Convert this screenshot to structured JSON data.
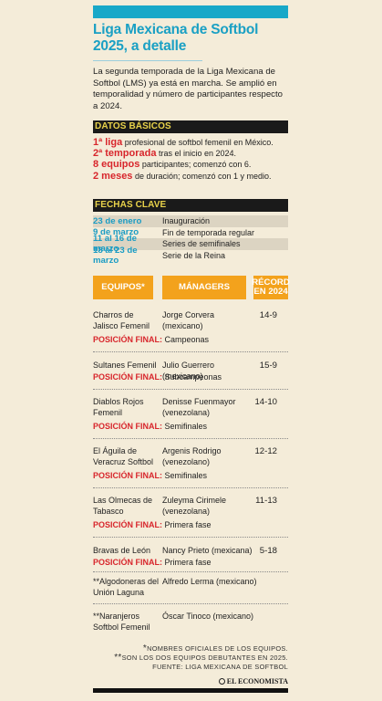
{
  "title": [
    "Liga Mexicana de Softbol",
    "2025, a detalle"
  ],
  "intro": "La segunda temporada de la Liga Mexicana de Softbol (LMS) ya está en marcha. Se amplió en temporalidad y número de participantes respecto a 2024.",
  "basics": {
    "heading": "DATOS BÁSICOS",
    "items": [
      {
        "big": "1ª liga",
        "text": " profesional de softbol femenil en México."
      },
      {
        "big": "2ª temporada",
        "text": " tras el inicio en 2024."
      },
      {
        "big": "8 equipos",
        "text": " participantes; comenzó con 6."
      },
      {
        "big": "2 meses",
        "text": " de duración; comenzó con 1 y medio."
      }
    ]
  },
  "dates": {
    "heading": "FECHAS CLAVE",
    "items": [
      {
        "date": "23 de enero",
        "event": "Inauguración"
      },
      {
        "date": "9 de marzo",
        "event": "Fin de temporada regular"
      },
      {
        "date": "11 al 16 de marzo",
        "event": "Series de semifinales"
      },
      {
        "date": "18 al 23 de marzo",
        "event": "Serie de la Reina"
      }
    ]
  },
  "table": {
    "col_teams": "EQUIPOS*",
    "col_managers": "MÁNAGERS",
    "col_record": [
      "RÉCORD",
      "EN 2024"
    ],
    "position_label": "POSICIÓN FINAL:",
    "rows": [
      {
        "team": "Charros de Jalisco Femenil",
        "manager": "Jorge Corvera (mexicano)",
        "record": "14-9",
        "position": " Campeonas"
      },
      {
        "team": "Sultanes Femenil",
        "manager": "Julio Guerrero (mexicano)",
        "record": "15-9",
        "position": " Subcampeonas"
      },
      {
        "team": "Diablos Rojos Femenil",
        "manager": "Denisse Fuenmayor (venezolana)",
        "record": "14-10",
        "position": " Semifinales"
      },
      {
        "team": "El Águila de Veracruz Softbol",
        "manager": "Argenis Rodrigo (venezolano)",
        "record": "12-12",
        "position": " Semifinales"
      },
      {
        "team": "Las Olmecas de Tabasco",
        "manager": "Zuleyma Cirimele (venezolana)",
        "record": "11-13",
        "position": " Primera fase"
      },
      {
        "team": "Bravas de León",
        "manager": "Nancy Prieto (mexicana)",
        "record": "5-18",
        "position": " Primera fase"
      },
      {
        "team": "**Algodoneras del Unión Laguna",
        "manager": "Alfredo Lerma (mexicano)",
        "record": "",
        "position": ""
      },
      {
        "team": "**Naranjeros Softbol Femenil",
        "manager": "Óscar Tinoco (mexicano)",
        "record": "",
        "position": ""
      }
    ]
  },
  "notes": {
    "note1_mark": "*",
    "note1": "NOMBRES OFICIALES DE LOS EQUIPOS.",
    "note2_mark": "**",
    "note2": "SON LOS DOS EQUIPOS DEBUTANTES EN 2025.",
    "source": "FUENTE: LIGA MEXICANA DE SOFTBOL",
    "brand": "EL ECONOMISTA"
  }
}
